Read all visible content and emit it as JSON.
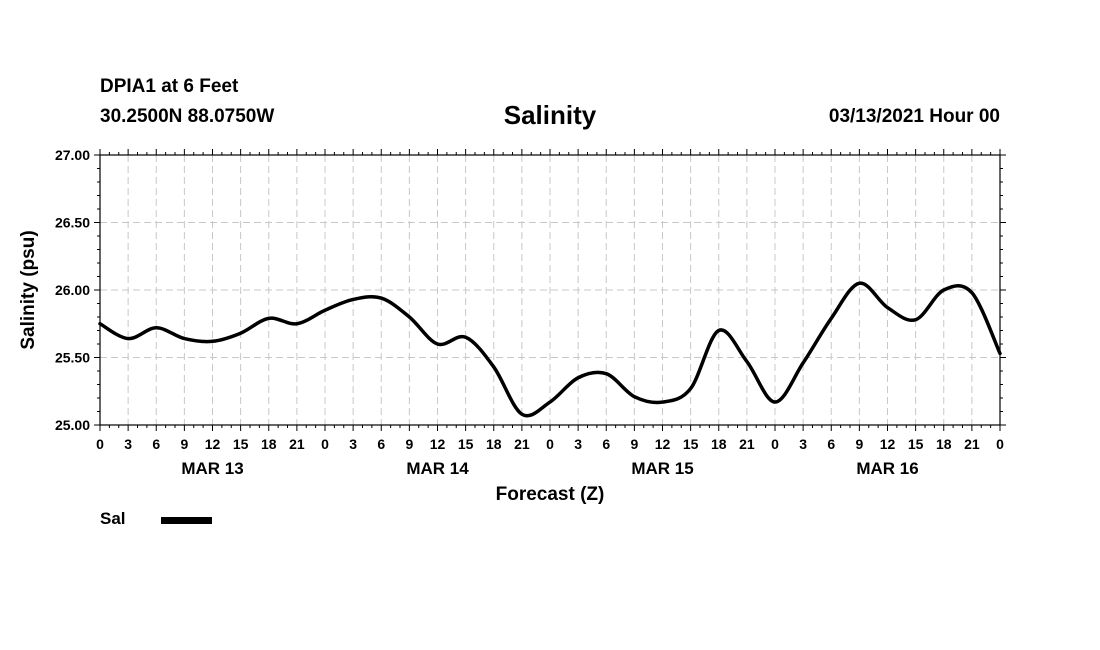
{
  "header": {
    "station": "DPIA1 at 6 Feet",
    "coords": "30.2500N 88.0750W",
    "title": "Salinity",
    "datetime": "03/13/2021 Hour 00"
  },
  "legend": {
    "label": "Sal",
    "color": "#000000"
  },
  "chart_data": {
    "type": "line",
    "title": "Salinity",
    "xlabel": "Forecast (Z)",
    "ylabel": "Salinity (psu)",
    "ylim": [
      25.0,
      27.0
    ],
    "yticks": [
      25.0,
      25.5,
      26.0,
      26.5,
      27.0
    ],
    "ytick_labels": [
      "25.00",
      "25.50",
      "26.00",
      "26.50",
      "27.00"
    ],
    "xlim": [
      0,
      96
    ],
    "xticks": [
      0,
      3,
      6,
      9,
      12,
      15,
      18,
      21,
      24,
      27,
      30,
      33,
      36,
      39,
      42,
      45,
      48,
      51,
      54,
      57,
      60,
      63,
      66,
      69,
      72,
      75,
      78,
      81,
      84,
      87,
      90,
      93,
      96
    ],
    "xtick_labels": [
      "0",
      "3",
      "6",
      "9",
      "12",
      "15",
      "18",
      "21",
      "0",
      "3",
      "6",
      "9",
      "12",
      "15",
      "18",
      "21",
      "0",
      "3",
      "6",
      "9",
      "12",
      "15",
      "18",
      "21",
      "0",
      "3",
      "6",
      "9",
      "12",
      "15",
      "18",
      "21",
      "0"
    ],
    "date_labels": [
      {
        "label": "MAR 13",
        "hour": 12
      },
      {
        "label": "MAR 14",
        "hour": 36
      },
      {
        "label": "MAR 15",
        "hour": 60
      },
      {
        "label": "MAR 16",
        "hour": 84
      }
    ],
    "grid": true,
    "series": [
      {
        "name": "Sal",
        "color": "#000000",
        "x": [
          0,
          3,
          6,
          9,
          12,
          15,
          18,
          21,
          24,
          27,
          30,
          33,
          36,
          39,
          42,
          45,
          48,
          51,
          54,
          57,
          60,
          63,
          66,
          69,
          72,
          75,
          78,
          81,
          84,
          87,
          90,
          93,
          96
        ],
        "y": [
          25.75,
          25.64,
          25.72,
          25.64,
          25.62,
          25.68,
          25.79,
          25.75,
          25.85,
          25.93,
          25.94,
          25.8,
          25.6,
          25.65,
          25.43,
          25.08,
          25.17,
          25.35,
          25.38,
          25.21,
          25.17,
          25.27,
          25.7,
          25.47,
          25.17,
          25.46,
          25.79,
          26.05,
          25.87,
          25.78,
          26.0,
          25.98,
          25.53
        ]
      }
    ]
  }
}
